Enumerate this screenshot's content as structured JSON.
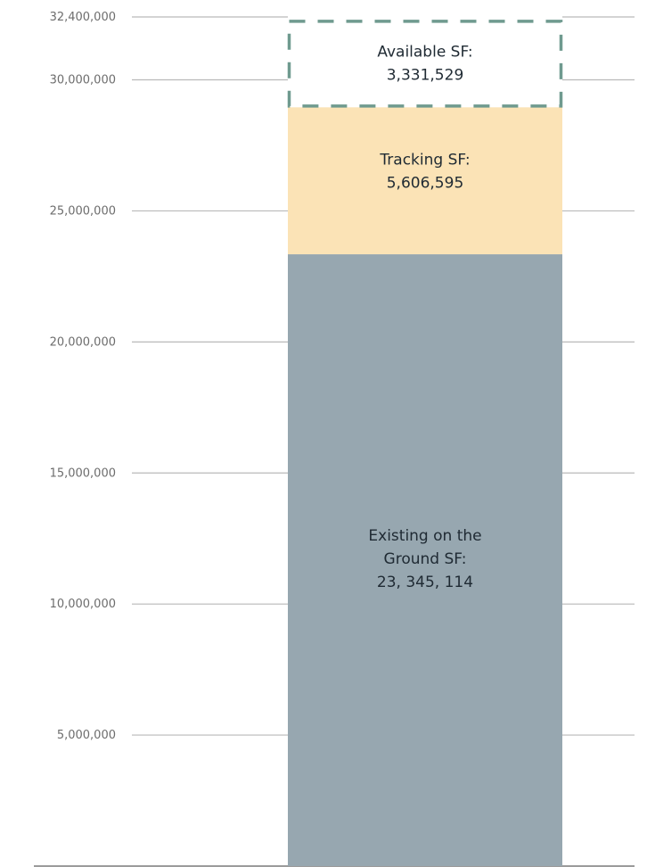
{
  "chart_data": {
    "type": "bar",
    "stacked": true,
    "ylim": [
      0,
      32400000
    ],
    "yticks": [
      {
        "value": 32400000,
        "label": "32,400,000"
      },
      {
        "value": 30000000,
        "label": "30,000,000"
      },
      {
        "value": 25000000,
        "label": "25,000,000"
      },
      {
        "value": 20000000,
        "label": "20,000,000"
      },
      {
        "value": 15000000,
        "label": "15,000,000"
      },
      {
        "value": 10000000,
        "label": "10,000,000"
      },
      {
        "value": 5000000,
        "label": "5,000,000"
      }
    ],
    "grid": true,
    "segments": [
      {
        "key": "existing",
        "value": 23345114,
        "label_lines": [
          "Existing on the",
          "Ground SF:",
          "23, 345, 114"
        ],
        "color": "#97a7b0",
        "style": "solid"
      },
      {
        "key": "tracking",
        "value": 5606595,
        "label_lines": [
          "Tracking SF:",
          "5,606,595"
        ],
        "color": "#fbe3b6",
        "style": "solid"
      },
      {
        "key": "available",
        "value": 3331529,
        "label_lines": [
          "Available SF:",
          "3,331,529"
        ],
        "color": "#6f9a8f",
        "style": "dashed"
      }
    ]
  }
}
